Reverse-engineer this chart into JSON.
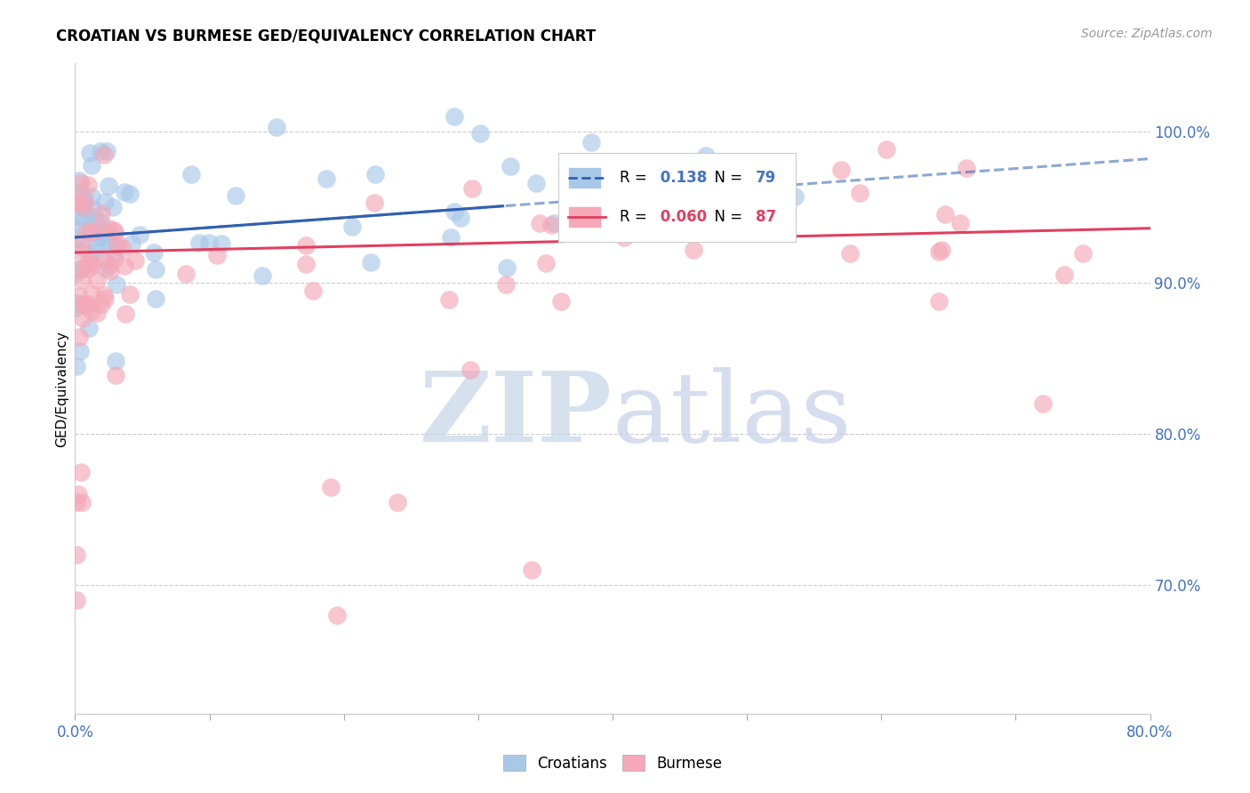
{
  "title": "CROATIAN VS BURMESE GED/EQUIVALENCY CORRELATION CHART",
  "source": "Source: ZipAtlas.com",
  "ylabel": "GED/Equivalency",
  "right_yticks": [
    0.7,
    0.8,
    0.9,
    1.0
  ],
  "right_yticklabels": [
    "70.0%",
    "80.0%",
    "90.0%",
    "100.0%"
  ],
  "croatian_R": 0.138,
  "croatian_N": 79,
  "burmese_R": 0.06,
  "burmese_N": 87,
  "croatian_color": "#a8c8e8",
  "burmese_color": "#f4a8b8",
  "trend_croatian_color": "#3060b0",
  "trend_burmese_color": "#e04060",
  "watermark_zip_color": "#c5d5e8",
  "watermark_atlas_color": "#c5cfe8",
  "legend_label_croatian": "Croatians",
  "legend_label_burmese": "Burmese",
  "xmin": 0.0,
  "xmax": 0.8,
  "ymin": 0.615,
  "ymax": 1.045,
  "xtick_positions": [
    0.0,
    0.1,
    0.2,
    0.3,
    0.4,
    0.5,
    0.6,
    0.7,
    0.8
  ],
  "cro_intercept": 0.93,
  "cro_slope": 0.065,
  "bur_intercept": 0.92,
  "bur_slope": 0.02
}
